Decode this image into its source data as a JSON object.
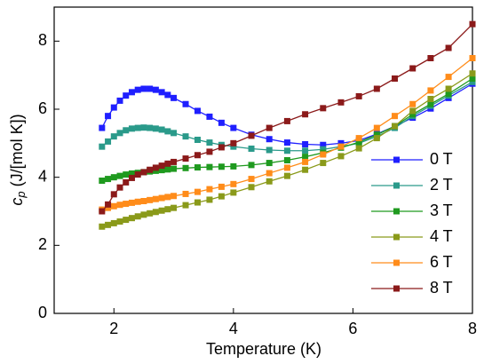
{
  "chart_data": {
    "type": "line",
    "xlabel": "Temperature (K)",
    "ylabel": {
      "main": "c",
      "sub": "p",
      "rest": " (J/[mol K])"
    },
    "xlim": [
      1,
      8
    ],
    "ylim": [
      0,
      9
    ],
    "xticks": [
      2,
      4,
      6,
      8
    ],
    "yticks": [
      0,
      2,
      4,
      6,
      8
    ],
    "legend": "lower right",
    "x": [
      1.8,
      1.9,
      2.0,
      2.1,
      2.2,
      2.3,
      2.4,
      2.5,
      2.6,
      2.7,
      2.8,
      2.9,
      3.0,
      3.2,
      3.4,
      3.6,
      3.8,
      4.0,
      4.3,
      4.6,
      4.9,
      5.2,
      5.5,
      5.8,
      6.1,
      6.4,
      6.7,
      7.0,
      7.3,
      7.6,
      8.0
    ],
    "series": [
      {
        "name": "0 T",
        "color": "#1f1fff",
        "values": [
          5.45,
          5.8,
          6.05,
          6.25,
          6.4,
          6.5,
          6.57,
          6.6,
          6.6,
          6.57,
          6.5,
          6.42,
          6.33,
          6.15,
          5.95,
          5.78,
          5.6,
          5.45,
          5.25,
          5.12,
          5.02,
          4.97,
          4.95,
          5.0,
          5.08,
          5.27,
          5.5,
          5.75,
          6.02,
          6.33,
          6.75
        ]
      },
      {
        "name": "2 T",
        "color": "#2a9a8a",
        "values": [
          4.9,
          5.05,
          5.2,
          5.3,
          5.38,
          5.43,
          5.45,
          5.46,
          5.45,
          5.43,
          5.4,
          5.35,
          5.3,
          5.2,
          5.1,
          5.02,
          4.95,
          4.9,
          4.84,
          4.8,
          4.78,
          4.78,
          4.82,
          4.9,
          5.0,
          5.2,
          5.45,
          5.8,
          6.1,
          6.4,
          6.8
        ]
      },
      {
        "name": "3 T",
        "color": "#1f9a1f",
        "values": [
          3.9,
          3.95,
          4.0,
          4.04,
          4.08,
          4.11,
          4.13,
          4.15,
          4.17,
          4.19,
          4.21,
          4.23,
          4.25,
          4.27,
          4.29,
          4.3,
          4.31,
          4.32,
          4.36,
          4.42,
          4.5,
          4.6,
          4.72,
          4.87,
          5.03,
          5.25,
          5.5,
          5.85,
          6.15,
          6.45,
          6.9
        ]
      },
      {
        "name": "4 T",
        "color": "#8a9a1a",
        "values": [
          2.55,
          2.6,
          2.65,
          2.7,
          2.75,
          2.8,
          2.85,
          2.9,
          2.94,
          2.98,
          3.02,
          3.06,
          3.1,
          3.18,
          3.26,
          3.34,
          3.44,
          3.55,
          3.71,
          3.88,
          4.04,
          4.22,
          4.42,
          4.62,
          4.85,
          5.15,
          5.5,
          5.95,
          6.3,
          6.6,
          7.05
        ]
      },
      {
        "name": "6 T",
        "color": "#ff8c1a",
        "values": [
          3.05,
          3.1,
          3.15,
          3.19,
          3.22,
          3.25,
          3.28,
          3.3,
          3.33,
          3.36,
          3.39,
          3.42,
          3.45,
          3.51,
          3.57,
          3.65,
          3.72,
          3.8,
          3.95,
          4.12,
          4.28,
          4.45,
          4.67,
          4.9,
          5.15,
          5.45,
          5.8,
          6.15,
          6.55,
          6.95,
          7.5
        ]
      },
      {
        "name": "8 T",
        "color": "#8b1a1a",
        "values": [
          3.0,
          3.2,
          3.5,
          3.7,
          3.85,
          3.98,
          4.08,
          4.15,
          4.22,
          4.28,
          4.34,
          4.4,
          4.45,
          4.55,
          4.65,
          4.75,
          4.88,
          5.0,
          5.22,
          5.45,
          5.65,
          5.85,
          6.03,
          6.2,
          6.38,
          6.6,
          6.9,
          7.2,
          7.5,
          7.8,
          8.5
        ]
      }
    ]
  }
}
